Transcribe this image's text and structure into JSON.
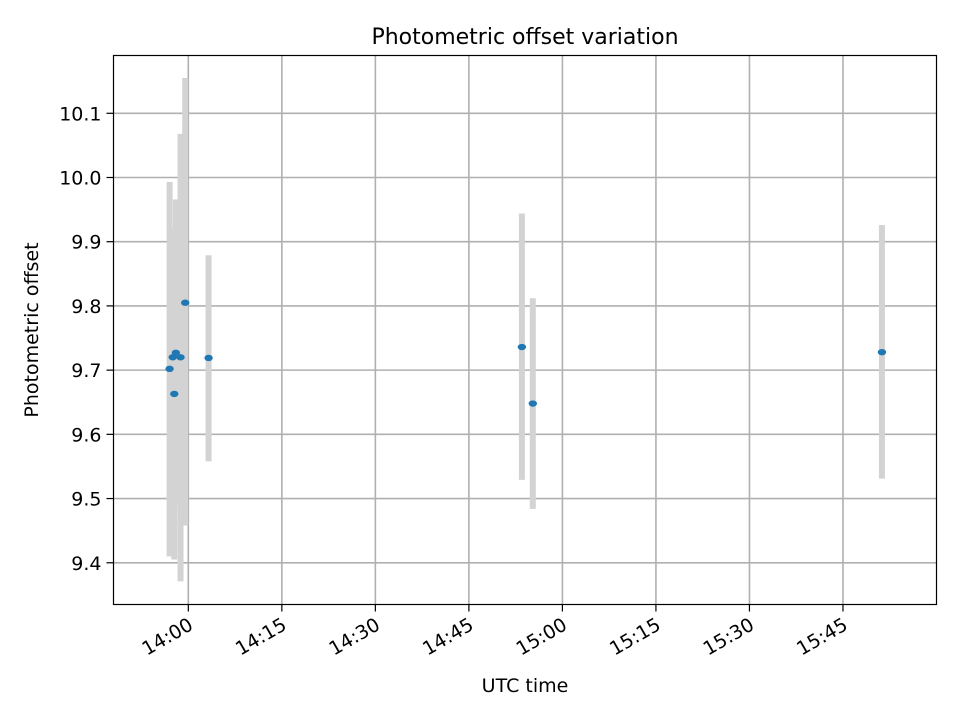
{
  "chart_data": {
    "type": "scatter",
    "title": "Photometric offset variation",
    "xlabel": "UTC time",
    "ylabel": "Photometric offset",
    "x_axis_kind": "time",
    "xlim": [
      "13:48:00",
      "16:00:00"
    ],
    "ylim": [
      9.335,
      10.19
    ],
    "xticks": [
      "14:00",
      "14:15",
      "14:30",
      "14:45",
      "15:00",
      "15:15",
      "15:30",
      "15:45"
    ],
    "yticks": [
      "9.4",
      "9.5",
      "9.6",
      "9.7",
      "9.8",
      "9.9",
      "10.0",
      "10.1"
    ],
    "grid": true,
    "points": [
      {
        "x": "13:57:00",
        "y": 9.702,
        "err_low": 9.41,
        "err_high": 9.993
      },
      {
        "x": "13:57:30",
        "y": 9.72,
        "err_low": 9.5,
        "err_high": 9.92
      },
      {
        "x": "13:57:45",
        "y": 9.663,
        "err_low": 9.405,
        "err_high": 9.92
      },
      {
        "x": "13:58:00",
        "y": 9.727,
        "err_low": 9.49,
        "err_high": 9.966
      },
      {
        "x": "13:58:45",
        "y": 9.72,
        "err_low": 9.371,
        "err_high": 10.068
      },
      {
        "x": "13:59:30",
        "y": 9.805,
        "err_low": 9.458,
        "err_high": 10.155
      },
      {
        "x": "14:03:15",
        "y": 9.719,
        "err_low": 9.558,
        "err_high": 9.879
      },
      {
        "x": "14:53:30",
        "y": 9.736,
        "err_low": 9.529,
        "err_high": 9.944
      },
      {
        "x": "14:55:15",
        "y": 9.648,
        "err_low": 9.484,
        "err_high": 9.812
      },
      {
        "x": "15:51:15",
        "y": 9.728,
        "err_low": 9.531,
        "err_high": 9.926
      }
    ],
    "colors": {
      "point": "#1f77b4",
      "errorbar": "#d3d3d3",
      "grid": "#b0b0b0"
    }
  }
}
